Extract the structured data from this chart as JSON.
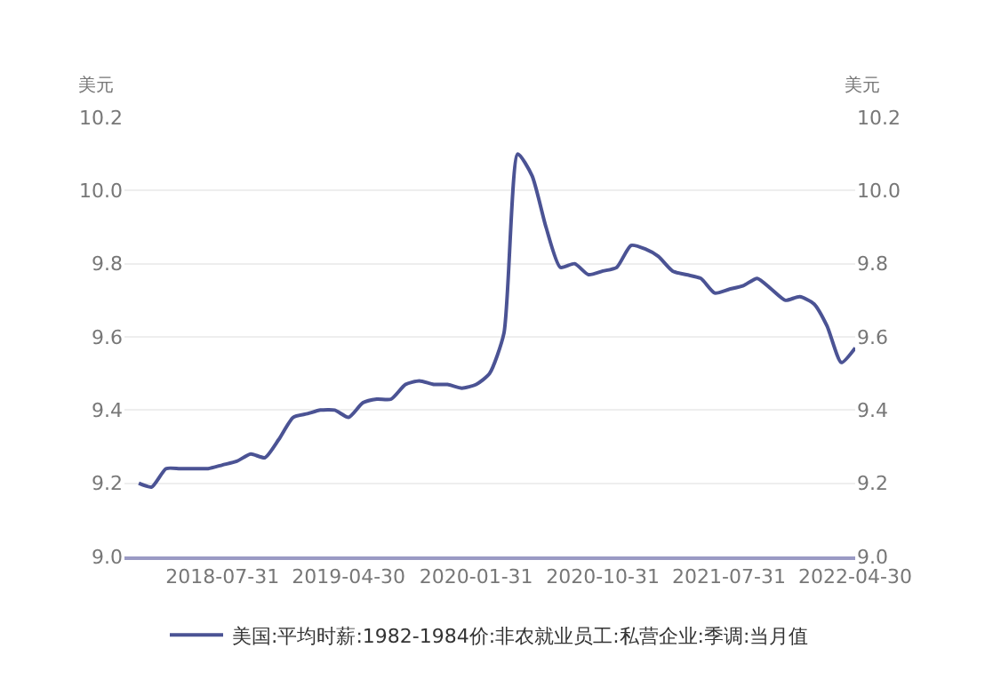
{
  "chart_data": {
    "type": "line",
    "ylabel": "美元",
    "y2label": "美元",
    "x": [
      "2018-01-31",
      "2018-02-28",
      "2018-03-31",
      "2018-04-30",
      "2018-05-31",
      "2018-06-30",
      "2018-07-31",
      "2018-08-31",
      "2018-09-30",
      "2018-10-31",
      "2018-11-30",
      "2018-12-31",
      "2019-01-31",
      "2019-02-28",
      "2019-03-31",
      "2019-04-30",
      "2019-05-31",
      "2019-06-30",
      "2019-07-31",
      "2019-08-31",
      "2019-09-30",
      "2019-10-31",
      "2019-11-30",
      "2019-12-31",
      "2020-01-31",
      "2020-02-29",
      "2020-03-31",
      "2020-04-30",
      "2020-05-31",
      "2020-06-30",
      "2020-07-31",
      "2020-08-31",
      "2020-09-30",
      "2020-10-31",
      "2020-11-30",
      "2020-12-31",
      "2021-01-31",
      "2021-02-28",
      "2021-03-31",
      "2021-04-30",
      "2021-05-31",
      "2021-06-30",
      "2021-07-31",
      "2021-08-31",
      "2021-09-30",
      "2021-10-31",
      "2021-11-30",
      "2021-12-31",
      "2022-01-31",
      "2022-02-28",
      "2022-03-31",
      "2022-04-30"
    ],
    "series": [
      {
        "name": "美国:平均时薪:1982-1984价:非农就业员工:私营企业:季调:当月值",
        "color": "#4b5394",
        "values": [
          9.2,
          9.19,
          9.24,
          9.24,
          9.24,
          9.24,
          9.25,
          9.26,
          9.28,
          9.27,
          9.32,
          9.38,
          9.39,
          9.4,
          9.4,
          9.38,
          9.42,
          9.43,
          9.43,
          9.47,
          9.48,
          9.47,
          9.47,
          9.46,
          9.47,
          9.5,
          9.61,
          10.1,
          10.04,
          9.9,
          9.79,
          9.8,
          9.77,
          9.78,
          9.79,
          9.85,
          9.84,
          9.82,
          9.78,
          9.77,
          9.76,
          9.72,
          9.73,
          9.74,
          9.76,
          9.73,
          9.7,
          9.71,
          9.69,
          9.63,
          9.53,
          9.57
        ]
      }
    ],
    "xlim": [
      "2017-12-31",
      "2022-04-30"
    ],
    "xticks": [
      "2018-07-31",
      "2019-04-30",
      "2020-01-31",
      "2020-10-31",
      "2021-07-31",
      "2022-04-30"
    ],
    "ylim": [
      9.0,
      10.2
    ],
    "yticks": [
      {
        "value": 9.0,
        "label": "9.0"
      },
      {
        "value": 9.2,
        "label": "9.2"
      },
      {
        "value": 9.4,
        "label": "9.4"
      },
      {
        "value": 9.6,
        "label": "9.6"
      },
      {
        "value": 9.8,
        "label": "9.8"
      },
      {
        "value": 10.0,
        "label": "10.0"
      },
      {
        "value": 10.2,
        "label": "10.2"
      }
    ],
    "y2lim": [
      9.0,
      10.2
    ],
    "y2ticks": [
      {
        "value": 9.0,
        "label": "9.0"
      },
      {
        "value": 9.2,
        "label": "9.2"
      },
      {
        "value": 9.4,
        "label": "9.4"
      },
      {
        "value": 9.6,
        "label": "9.6"
      },
      {
        "value": 9.8,
        "label": "9.8"
      },
      {
        "value": 10.0,
        "label": "10.0"
      },
      {
        "value": 10.2,
        "label": "10.2"
      }
    ],
    "grid": "y",
    "legend": "bottom",
    "marker": "none",
    "line_style": "solid"
  }
}
